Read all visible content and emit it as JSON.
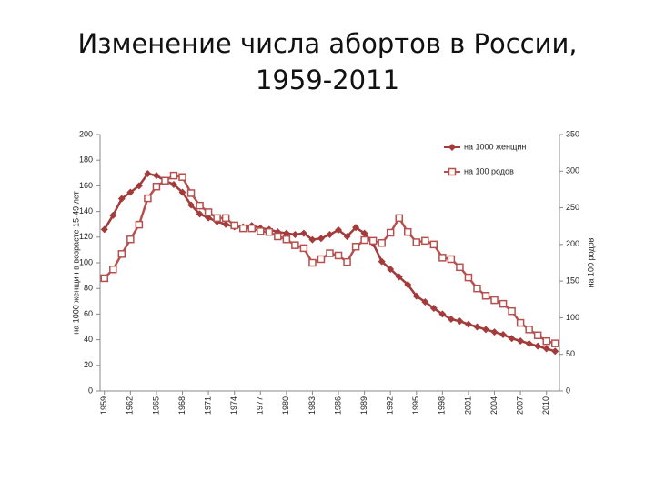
{
  "chart_data": {
    "type": "line",
    "title": "Изменение числа абортов в России, 1959-2011",
    "ylabel": "на 1000 женщин в возрасте 15-49 лет",
    "y2label": "на 100 родов",
    "x": [
      1959,
      1960,
      1961,
      1962,
      1963,
      1964,
      1965,
      1966,
      1967,
      1968,
      1969,
      1970,
      1971,
      1972,
      1973,
      1974,
      1975,
      1976,
      1977,
      1978,
      1979,
      1980,
      1981,
      1982,
      1983,
      1984,
      1985,
      1986,
      1987,
      1988,
      1989,
      1990,
      1991,
      1992,
      1993,
      1994,
      1995,
      1996,
      1997,
      1998,
      1999,
      2000,
      2001,
      2002,
      2003,
      2004,
      2005,
      2006,
      2007,
      2008,
      2009,
      2010,
      2011
    ],
    "xlim": [
      1958.5,
      2011.5
    ],
    "xticks": [
      1959,
      1962,
      1965,
      1968,
      1971,
      1974,
      1977,
      1980,
      1983,
      1986,
      1989,
      1992,
      1995,
      1998,
      2001,
      2004,
      2007,
      2010
    ],
    "ylim": [
      0,
      200
    ],
    "yticks": [
      0,
      20,
      40,
      60,
      80,
      100,
      120,
      140,
      160,
      180,
      200
    ],
    "y2lim": [
      0,
      350
    ],
    "y2ticks": [
      0,
      50,
      100,
      150,
      200,
      250,
      300,
      350
    ],
    "legend": "upper right",
    "series": [
      {
        "name": "на 1000 женщин",
        "color": "#a33b3b",
        "marker": "diamond",
        "values": [
          126,
          137,
          150,
          155,
          160,
          169.5,
          168,
          164,
          161,
          155,
          145,
          138,
          135,
          132,
          130,
          128,
          128,
          129,
          127,
          126,
          124,
          123,
          122,
          123,
          118,
          119,
          122,
          125.5,
          120.5,
          127.5,
          123,
          115,
          101,
          95,
          89,
          83,
          74,
          69.5,
          64.5,
          60,
          56,
          54.5,
          52,
          50,
          48,
          46,
          44,
          41,
          39,
          37,
          35,
          33,
          31
        ]
      },
      {
        "name": "на 100 родов",
        "color": "#b5504e",
        "marker": "square",
        "axis": "y2",
        "values": [
          154,
          166,
          187,
          207,
          227,
          263,
          279,
          287,
          294,
          292,
          270,
          253,
          244,
          236,
          236,
          226,
          222,
          222,
          218,
          217,
          211,
          207,
          199,
          195,
          175,
          180,
          188,
          185,
          176,
          197,
          206,
          205,
          202,
          216,
          236,
          217,
          203,
          205,
          200,
          182,
          180,
          169,
          155,
          140,
          130,
          124,
          119,
          109,
          93,
          84,
          76,
          68,
          65
        ]
      }
    ]
  }
}
